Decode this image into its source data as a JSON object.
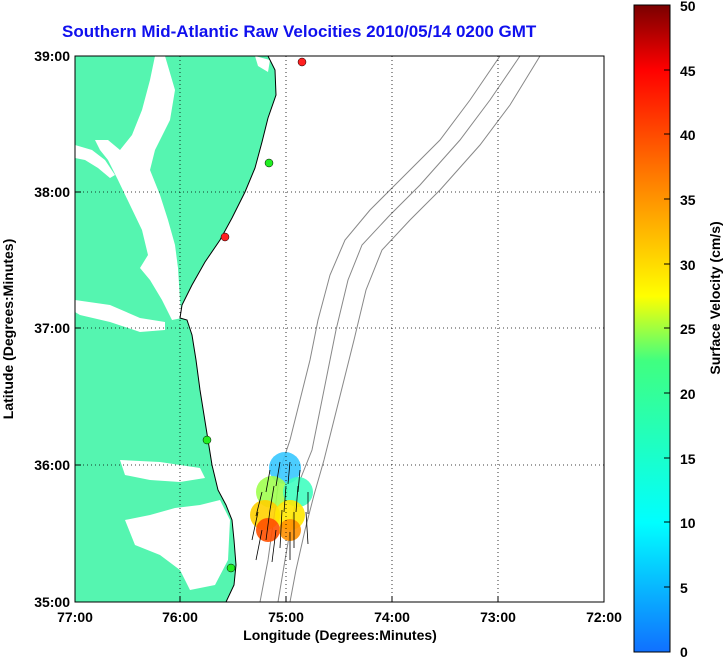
{
  "title": "Southern Mid-Atlantic Raw Velocities 2010/05/14 0200 GMT",
  "map": {
    "xlabel": "Longitude (Degrees:Minutes)",
    "ylabel": "Latitude (Degrees:Minutes)",
    "x_ticks": [
      "77:00",
      "76:00",
      "75:00",
      "74:00",
      "73:00",
      "72:00"
    ],
    "y_ticks": [
      "39:00",
      "38:00",
      "37:00",
      "36:00",
      "35:00"
    ],
    "land_color": "#55f5b0",
    "gridlines": "dotted",
    "station_markers": [
      {
        "color": "#ff2020"
      },
      {
        "color": "#22ee22"
      },
      {
        "color": "#ff2020"
      },
      {
        "color": "#22ee22"
      },
      {
        "color": "#22ee22"
      }
    ]
  },
  "colorbar": {
    "label": "Surface Velocity (cm/s)",
    "ticks": [
      "50",
      "45",
      "40",
      "35",
      "30",
      "25",
      "20",
      "15",
      "10",
      "5",
      "0"
    ],
    "min": 0,
    "max": 50,
    "colormap": "jet"
  }
}
